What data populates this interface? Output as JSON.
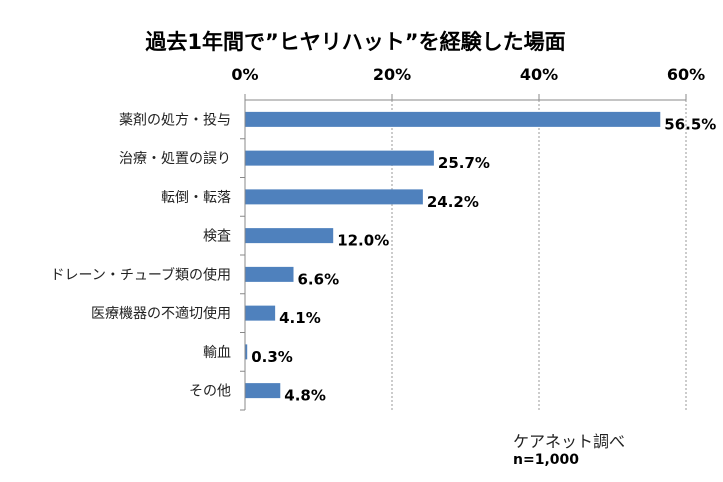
{
  "chart_data": {
    "type": "bar",
    "orientation": "horizontal",
    "title": "過去1年間で”ヒヤリハット”を経験した場面",
    "categories": [
      "薬剤の処方・投与",
      "治療・処置の誤り",
      "転倒・転落",
      "検査",
      "ドレーン・チューブ類の使用",
      "医療機器の不適切使用",
      "輸血",
      "その他"
    ],
    "values": [
      56.5,
      25.7,
      24.2,
      12.0,
      6.6,
      4.1,
      0.3,
      4.8
    ],
    "value_labels": [
      "56.5%",
      "25.7%",
      "24.2%",
      "12.0%",
      "6.6%",
      "4.1%",
      "0.3%",
      "4.8%"
    ],
    "xlim": [
      0,
      60
    ],
    "x_ticks": [
      0,
      20,
      40,
      60
    ],
    "x_tick_labels": [
      "0%",
      "20%",
      "40%",
      "60%"
    ],
    "x_axis_position": "top",
    "grid": true,
    "bar_color": "#4f81bd"
  },
  "notes": {
    "source": "ケアネット調べ",
    "sample": "n=1,000"
  }
}
